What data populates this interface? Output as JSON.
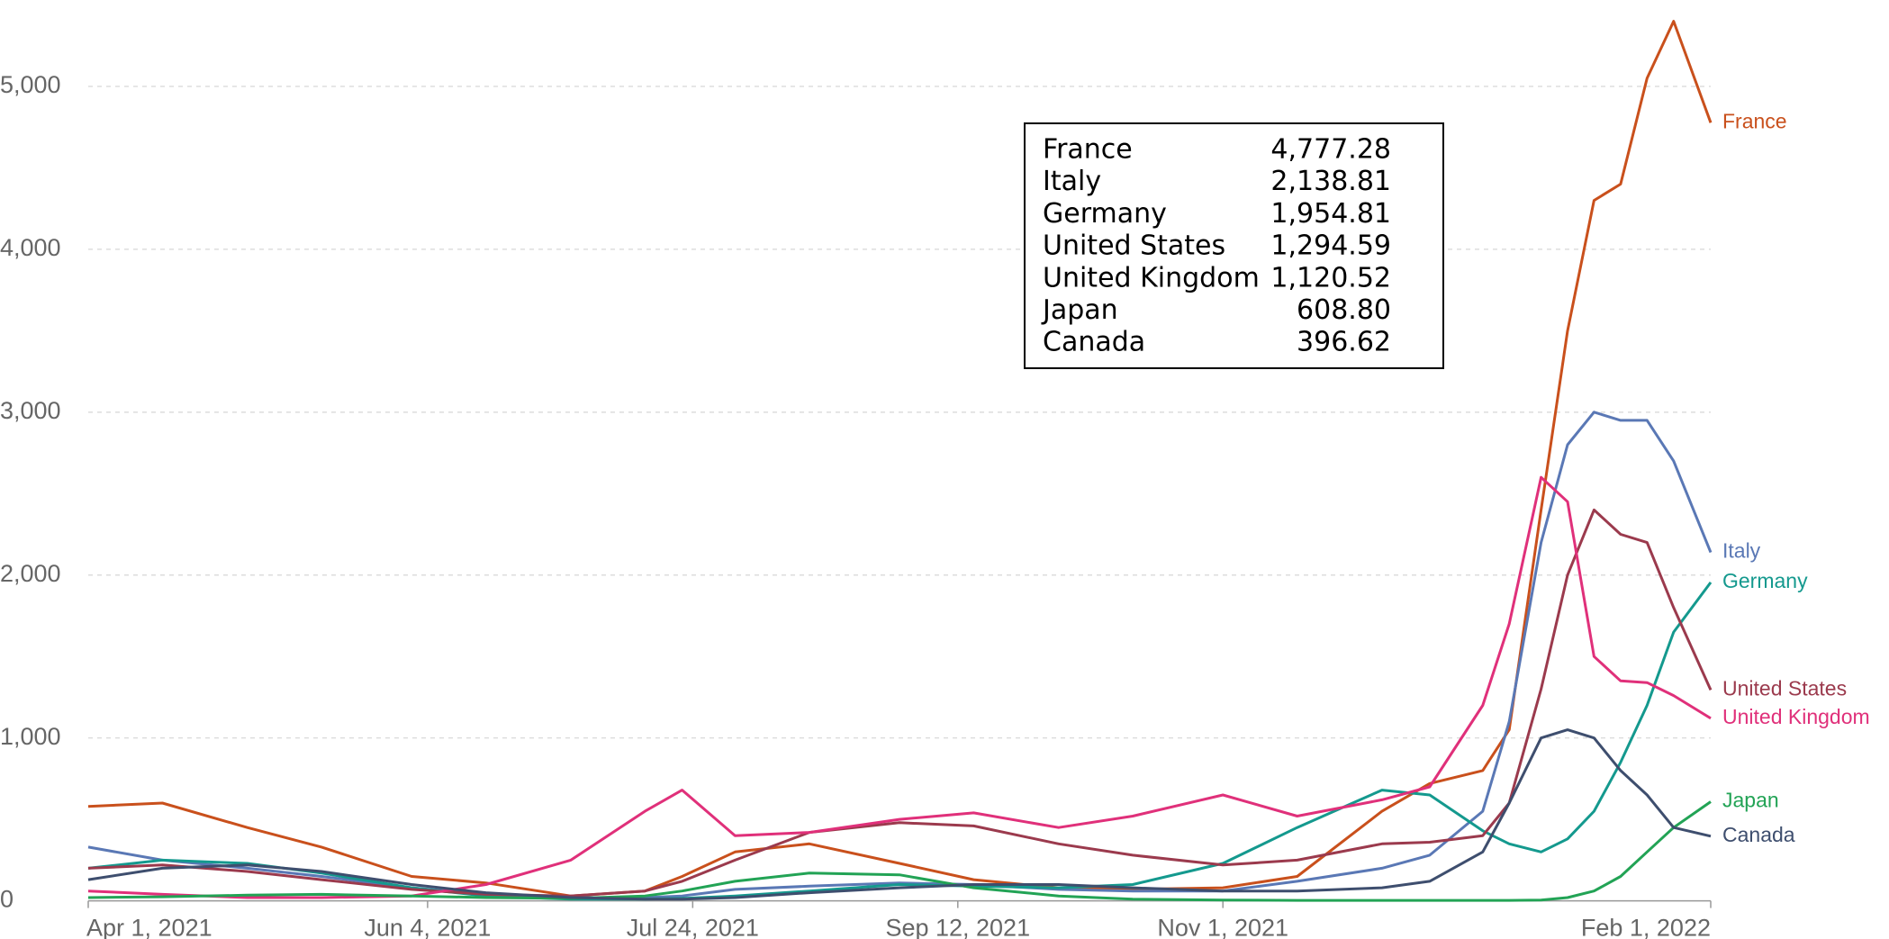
{
  "chart_data": {
    "type": "line",
    "x": [
      "2021-04-01",
      "2021-04-15",
      "2021-05-01",
      "2021-05-15",
      "2021-06-01",
      "2021-06-15",
      "2021-07-01",
      "2021-07-15",
      "2021-07-22",
      "2021-08-01",
      "2021-08-15",
      "2021-09-01",
      "2021-09-15",
      "2021-10-01",
      "2021-10-15",
      "2021-11-01",
      "2021-11-15",
      "2021-12-01",
      "2021-12-10",
      "2021-12-20",
      "2021-12-25",
      "2021-12-31",
      "2022-01-05",
      "2022-01-10",
      "2022-01-15",
      "2022-01-20",
      "2022-01-25",
      "2022-02-01"
    ],
    "xlim": [
      "2021-04-01",
      "2022-02-01"
    ],
    "xticks": [
      {
        "value": "2021-04-01",
        "label": "Apr 1, 2021"
      },
      {
        "value": "2021-06-04",
        "label": "Jun 4, 2021"
      },
      {
        "value": "2021-07-24",
        "label": "Jul 24, 2021"
      },
      {
        "value": "2021-09-12",
        "label": "Sep 12, 2021"
      },
      {
        "value": "2021-11-01",
        "label": "Nov 1, 2021"
      },
      {
        "value": "2022-02-01",
        "label": "Feb 1, 2022"
      }
    ],
    "ylim": [
      0,
      5500
    ],
    "yticks": [
      0,
      {
        "value": 1000,
        "label": "1,000"
      },
      {
        "value": 2000,
        "label": "2,000"
      },
      {
        "value": 3000,
        "label": "3,000"
      },
      {
        "value": 4000,
        "label": "4,000"
      },
      {
        "value": 5000,
        "label": "5,000"
      }
    ],
    "grid": true,
    "series": [
      {
        "name": "France",
        "color": "#c9501c",
        "values": [
          580,
          600,
          450,
          330,
          150,
          110,
          30,
          60,
          150,
          300,
          350,
          230,
          130,
          80,
          70,
          80,
          150,
          550,
          720,
          800,
          1050,
          2400,
          3500,
          4300,
          4400,
          5050,
          5400,
          4777.28
        ]
      },
      {
        "name": "Italy",
        "color": "#5a78b5",
        "values": [
          330,
          250,
          200,
          150,
          80,
          40,
          20,
          20,
          30,
          70,
          90,
          110,
          100,
          70,
          60,
          60,
          120,
          200,
          280,
          550,
          1100,
          2200,
          2800,
          3000,
          2950,
          2950,
          2700,
          2138.81
        ]
      },
      {
        "name": "Germany",
        "color": "#14998e",
        "values": [
          200,
          250,
          230,
          170,
          80,
          30,
          10,
          10,
          15,
          30,
          60,
          100,
          90,
          80,
          100,
          230,
          450,
          680,
          650,
          430,
          350,
          300,
          380,
          550,
          850,
          1200,
          1650,
          1954.81
        ]
      },
      {
        "name": "United States",
        "color": "#9b3a4d",
        "values": [
          200,
          220,
          180,
          130,
          70,
          40,
          30,
          60,
          120,
          250,
          420,
          480,
          460,
          350,
          280,
          220,
          250,
          350,
          360,
          400,
          600,
          1300,
          2000,
          2400,
          2250,
          2200,
          1800,
          1294.59
        ]
      },
      {
        "name": "United Kingdom",
        "color": "#e0307a",
        "values": [
          60,
          40,
          20,
          20,
          30,
          100,
          250,
          550,
          680,
          400,
          420,
          500,
          540,
          450,
          520,
          650,
          520,
          620,
          700,
          1200,
          1700,
          2600,
          2450,
          1500,
          1350,
          1340,
          1260,
          1120.52
        ]
      },
      {
        "name": "Japan",
        "color": "#22a355",
        "values": [
          20,
          25,
          35,
          40,
          30,
          20,
          15,
          30,
          60,
          120,
          170,
          160,
          80,
          30,
          10,
          5,
          3,
          3,
          3,
          3,
          3,
          5,
          20,
          60,
          150,
          300,
          450,
          608.8
        ]
      },
      {
        "name": "Canada",
        "color": "#3e4e6e",
        "values": [
          130,
          200,
          220,
          180,
          100,
          50,
          20,
          10,
          10,
          20,
          50,
          80,
          100,
          100,
          80,
          60,
          60,
          80,
          120,
          300,
          600,
          1000,
          1050,
          1000,
          800,
          650,
          450,
          396.62
        ]
      }
    ],
    "tooltip": {
      "rows": [
        {
          "name": "France",
          "label": "4,777.28"
        },
        {
          "name": "Italy",
          "label": "2,138.81"
        },
        {
          "name": "Germany",
          "label": "1,954.81"
        },
        {
          "name": "United States",
          "label": "1,294.59"
        },
        {
          "name": "United Kingdom",
          "label": "1,120.52"
        },
        {
          "name": "Japan",
          "label": "608.80"
        },
        {
          "name": "Canada",
          "label": "396.62"
        }
      ]
    }
  }
}
